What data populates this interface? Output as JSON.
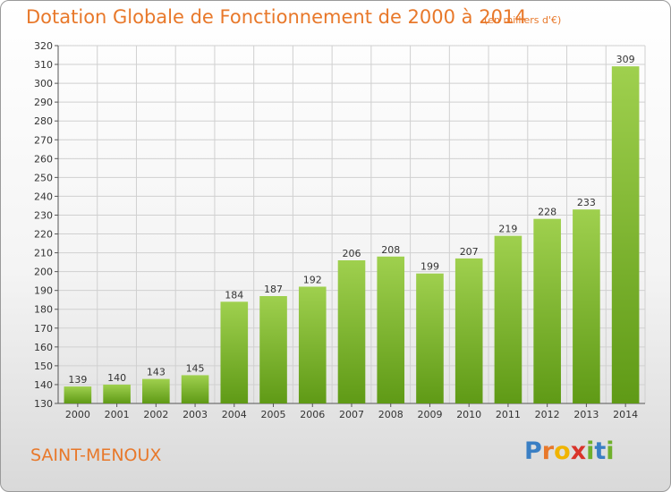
{
  "header": {
    "title": "Dotation Globale de Fonctionnement de 2000 à 2014",
    "subtitle": "(en milliers d'€)"
  },
  "footer": {
    "commune": "SAINT-MENOUX",
    "logo_letters": [
      {
        "ch": "P",
        "color": "#3a7fc4"
      },
      {
        "ch": "r",
        "color": "#e8782a"
      },
      {
        "ch": "o",
        "color": "#f0b400"
      },
      {
        "ch": "x",
        "color": "#d9342b"
      },
      {
        "ch": "i",
        "color": "#6fb02c"
      },
      {
        "ch": "t",
        "color": "#3a7fc4"
      },
      {
        "ch": "i",
        "color": "#6fb02c"
      }
    ]
  },
  "chart_data": {
    "type": "bar",
    "title": "Dotation Globale de Fonctionnement de 2000 à 2014",
    "subtitle": "(en milliers d'€)",
    "categories": [
      "2000",
      "2001",
      "2002",
      "2003",
      "2004",
      "2005",
      "2006",
      "2007",
      "2008",
      "2009",
      "2010",
      "2011",
      "2012",
      "2013",
      "2014"
    ],
    "values": [
      139,
      140,
      143,
      145,
      184,
      187,
      192,
      206,
      208,
      199,
      207,
      219,
      228,
      233,
      309
    ],
    "ylim": [
      130,
      320
    ],
    "ytick_step": 10,
    "grid": true,
    "bar_color_top": "#9fd04e",
    "bar_color_bottom": "#5f9a16",
    "grid_color": "#d0d0d0"
  }
}
